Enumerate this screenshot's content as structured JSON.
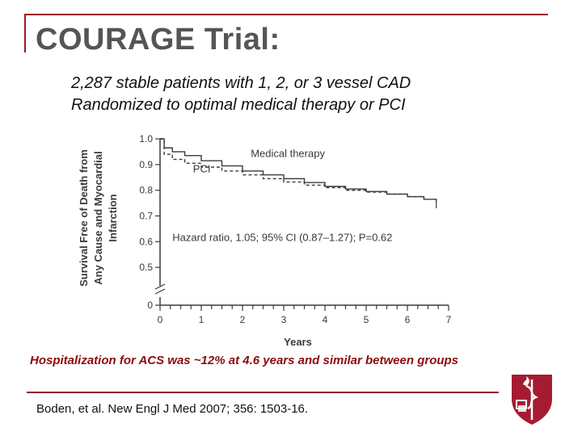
{
  "slide": {
    "title": "COURAGE Trial:",
    "subtitle_line1": "2,287 stable patients with 1, 2, or 3 vessel CAD",
    "subtitle_line2": "Randomized to optimal medical therapy or PCI",
    "finding": "Hospitalization for ACS was ~12% at 4.6 years and similar between groups",
    "citation": "Boden, et al. New Engl J Med 2007; 356: 1503-16."
  },
  "colors": {
    "accent": "#9b1b1b",
    "finding_text": "#8b0c0c",
    "title_text": "#555555",
    "chart_ink": "#3a3a3a",
    "shield": "#a51c30"
  },
  "logo": {
    "icon": "harvard-shield-icon"
  },
  "chart_data": {
    "type": "line",
    "xlabel": "Years",
    "ylabel_line1": "Survival Free of Death from",
    "ylabel_line2": "Any Cause and Myocardial",
    "ylabel_line3": "Infarction",
    "xlim": [
      0,
      7
    ],
    "ylim": [
      0.45,
      1.0
    ],
    "axis_break": true,
    "x_ticks": [
      "0",
      "1",
      "2",
      "3",
      "4",
      "5",
      "6",
      "7"
    ],
    "y_ticks": [
      "1.0",
      "0.9",
      "0.8",
      "0.7",
      "0.6",
      "0.5",
      "0"
    ],
    "series": [
      {
        "name": "Medical therapy",
        "style": "solid",
        "x": [
          0,
          0.1,
          0.3,
          0.6,
          1.0,
          1.5,
          2.0,
          2.5,
          3.0,
          3.5,
          4.0,
          4.5,
          5.0,
          5.5,
          6.0,
          6.4,
          6.7
        ],
        "y": [
          1.0,
          0.965,
          0.95,
          0.935,
          0.915,
          0.895,
          0.875,
          0.86,
          0.845,
          0.83,
          0.815,
          0.805,
          0.795,
          0.785,
          0.775,
          0.765,
          0.755
        ]
      },
      {
        "name": "PCI",
        "style": "dashed",
        "x": [
          0,
          0.1,
          0.3,
          0.6,
          1.0,
          1.5,
          2.0,
          2.5,
          3.0,
          3.5,
          4.0,
          4.5,
          5.0,
          5.5,
          6.0,
          6.4
        ],
        "y": [
          1.0,
          0.94,
          0.92,
          0.905,
          0.89,
          0.875,
          0.86,
          0.845,
          0.832,
          0.82,
          0.81,
          0.8,
          0.793,
          0.785,
          0.775,
          0.765
        ]
      }
    ],
    "annotation": "Hazard ratio, 1.05; 95% CI (0.87–1.27); P=0.62"
  }
}
